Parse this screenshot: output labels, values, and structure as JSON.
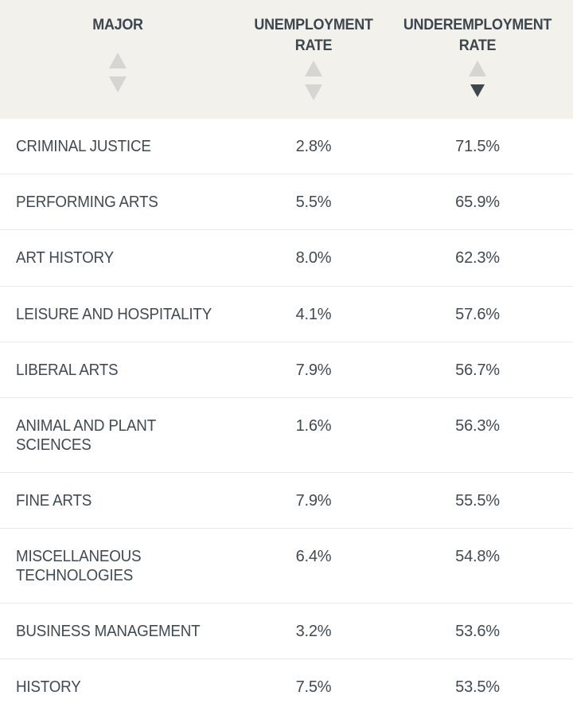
{
  "table": {
    "columns": [
      {
        "key": "major",
        "label": "MAJOR",
        "sort": "none"
      },
      {
        "key": "unemployment",
        "label": "UNEMPLOYMENT\nRATE",
        "sort": "none"
      },
      {
        "key": "underemployment",
        "label": "UNDEREMPLOYMENT\nRATE",
        "sort": "descending"
      }
    ],
    "rows": [
      {
        "major": "CRIMINAL JUSTICE",
        "unemployment": "2.8%",
        "underemployment": "71.5%"
      },
      {
        "major": "PERFORMING ARTS",
        "unemployment": "5.5%",
        "underemployment": "65.9%"
      },
      {
        "major": "ART HISTORY",
        "unemployment": "8.0%",
        "underemployment": "62.3%"
      },
      {
        "major": "LEISURE AND HOSPITALITY",
        "unemployment": "4.1%",
        "underemployment": "57.6%"
      },
      {
        "major": "LIBERAL ARTS",
        "unemployment": "7.9%",
        "underemployment": "56.7%"
      },
      {
        "major": "ANIMAL AND PLANT SCIENCES",
        "unemployment": "1.6%",
        "underemployment": "56.3%"
      },
      {
        "major": "FINE ARTS",
        "unemployment": "7.9%",
        "underemployment": "55.5%"
      },
      {
        "major": "MISCELLANEOUS TECHNOLOGIES",
        "unemployment": "6.4%",
        "underemployment": "54.8%"
      },
      {
        "major": "BUSINESS MANAGEMENT",
        "unemployment": "3.2%",
        "underemployment": "53.6%"
      },
      {
        "major": "HISTORY",
        "unemployment": "7.5%",
        "underemployment": "53.5%"
      }
    ]
  },
  "colors": {
    "header_background": "#f3f1ec",
    "text": "#414a51",
    "sort_inactive": "#d6d5d2",
    "sort_active": "#3f474d",
    "row_divider": "#ebe9e5"
  }
}
